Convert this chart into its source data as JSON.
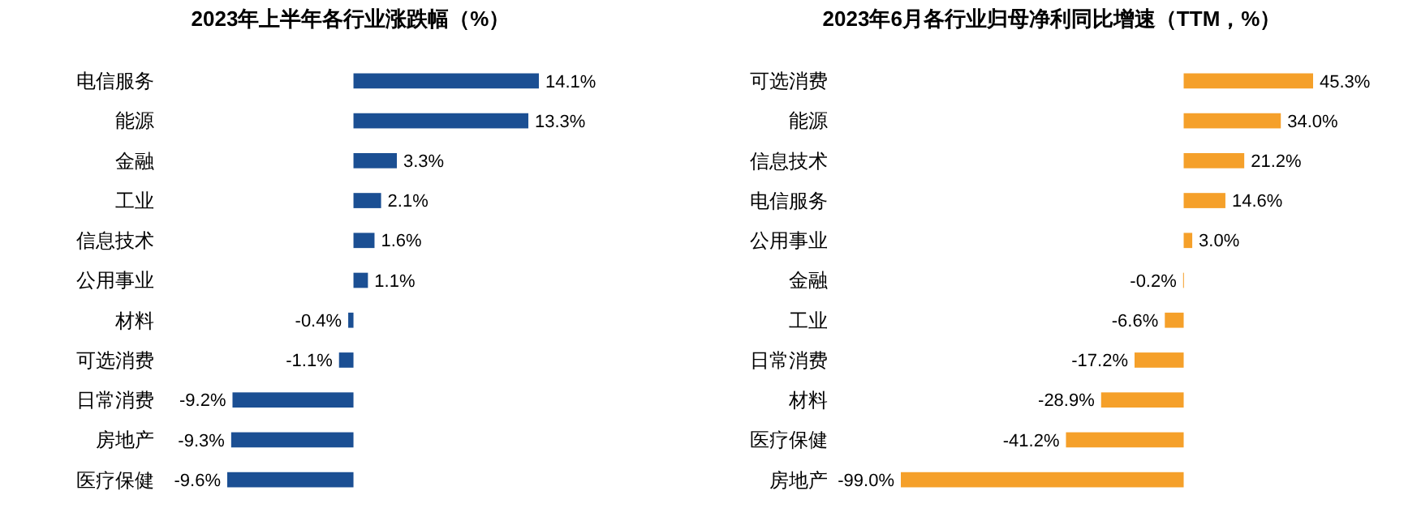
{
  "chart_data": [
    {
      "type": "bar",
      "orientation": "horizontal",
      "title": "2023年上半年各行业涨跌幅（%）",
      "categories": [
        "电信服务",
        "能源",
        "金融",
        "工业",
        "信息技术",
        "公用事业",
        "材料",
        "可选消费",
        "日常消费",
        "房地产",
        "医疗保健"
      ],
      "values": [
        14.1,
        13.3,
        3.3,
        2.1,
        1.6,
        1.1,
        -0.4,
        -1.1,
        -9.2,
        -9.3,
        -9.6
      ],
      "color": "#1b4f93",
      "value_labels": [
        "14.1%",
        "13.3%",
        "3.3%",
        "2.1%",
        "1.6%",
        "1.1%",
        "-0.4%",
        "-1.1%",
        "-9.2%",
        "-9.3%",
        "-9.6%"
      ]
    },
    {
      "type": "bar",
      "orientation": "horizontal",
      "title": "2023年6月各行业归母净利同比增速（TTM，%）",
      "categories": [
        "可选消费",
        "能源",
        "信息技术",
        "电信服务",
        "公用事业",
        "金融",
        "工业",
        "日常消费",
        "材料",
        "医疗保健",
        "房地产"
      ],
      "values": [
        45.3,
        34.0,
        21.2,
        14.6,
        3.0,
        -0.2,
        -6.6,
        -17.2,
        -28.9,
        -41.2,
        -99.0
      ],
      "color": "#f5a02a",
      "value_labels": [
        "45.3%",
        "34.0%",
        "21.2%",
        "14.6%",
        "3.0%",
        "-0.2%",
        "-6.6%",
        "-17.2%",
        "-28.9%",
        "-41.2%",
        "-99.0%"
      ]
    }
  ]
}
